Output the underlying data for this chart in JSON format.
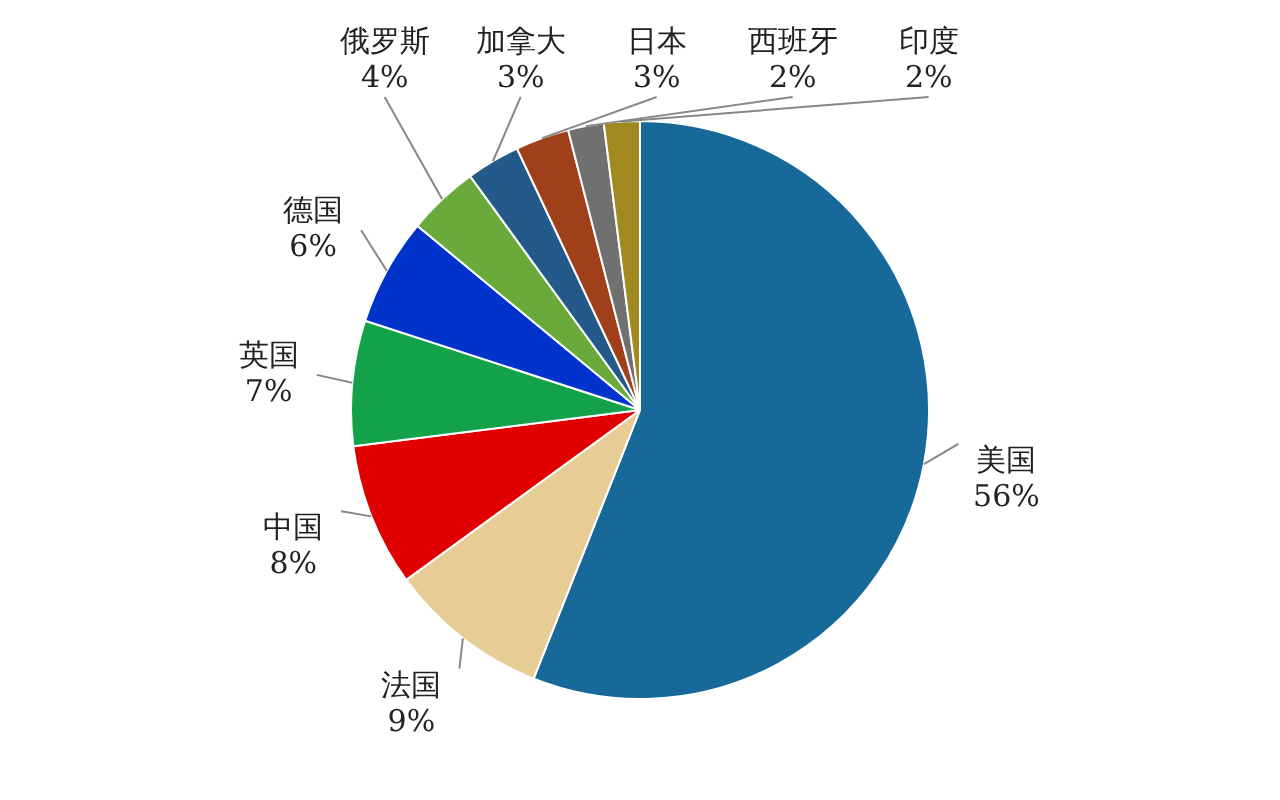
{
  "chart_data": {
    "type": "pie",
    "categories": [
      "美国",
      "法国",
      "中国",
      "英国",
      "德国",
      "俄罗斯",
      "加拿大",
      "日本",
      "西班牙",
      "印度"
    ],
    "values": [
      56,
      9,
      8,
      7,
      6,
      4,
      3,
      3,
      2,
      2
    ],
    "colors": [
      "#17699a",
      "#e8cc96",
      "#e00000",
      "#13a24a",
      "#0033cc",
      "#6aaa3a",
      "#245a8a",
      "#a0401a",
      "#707070",
      "#a08a20"
    ],
    "value_labels": [
      "56%",
      "9%",
      "8%",
      "7%",
      "6%",
      "4%",
      "3%",
      "3%",
      "2%",
      "2%"
    ]
  }
}
